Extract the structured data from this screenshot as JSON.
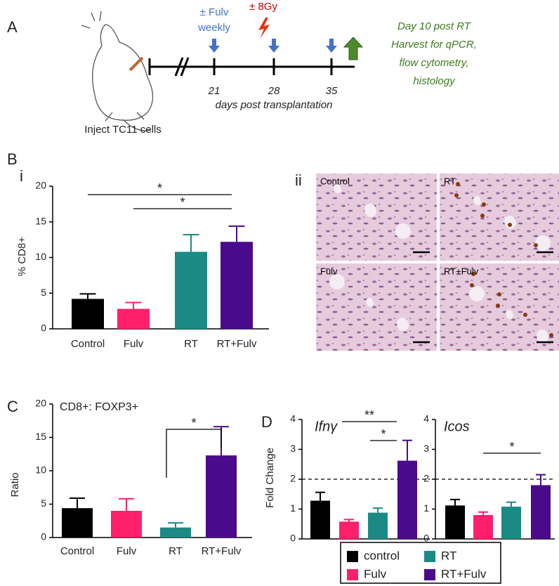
{
  "panel_labels": [
    "A",
    "B",
    "i",
    "ii",
    "C",
    "D"
  ],
  "timeline": {
    "fulv": [
      "± Fulv",
      "weekly"
    ],
    "rt": "± 8Gy",
    "ticks": [
      21,
      28,
      35
    ],
    "axis_label": "days post transplantation",
    "harvest": [
      "Day 10 post RT",
      "Harvest for qPCR,",
      "flow cytometry,",
      "histology"
    ],
    "caption": "Inject TC11 cells"
  },
  "micrographs": [
    "Control",
    "RT",
    "Fulv",
    "RT+Fulv"
  ],
  "legend": [
    {
      "name": "control",
      "color": "#000000"
    },
    {
      "name": "RT",
      "color": "#1b8a85"
    },
    {
      "name": "Fulv",
      "color": "#ff1f6b"
    },
    {
      "name": "RT+Fulv",
      "color": "#4a0a8c"
    }
  ],
  "chart_data": [
    {
      "type": "bar",
      "ylabel": "% CD8+",
      "categories": [
        "Control",
        "Fulv",
        "RT",
        "RT+Fulv"
      ],
      "values": [
        4.2,
        2.8,
        10.8,
        12.2
      ],
      "errors": [
        0.7,
        0.9,
        2.4,
        2.2
      ],
      "colors": [
        "#000000",
        "#ff1f6b",
        "#1b8a85",
        "#4a0a8c"
      ],
      "ylim": [
        0,
        20
      ],
      "yticks": [
        0,
        5,
        10,
        15,
        20
      ],
      "annotations": [
        "*",
        "*"
      ]
    },
    {
      "type": "bar",
      "title": "CD8+: FOXP3+",
      "ylabel": "Ratio",
      "categories": [
        "Control",
        "Fulv",
        "RT",
        "RT+Fulv"
      ],
      "values": [
        4.4,
        4.0,
        1.5,
        12.3
      ],
      "errors": [
        1.5,
        1.8,
        0.7,
        4.3
      ],
      "colors": [
        "#000000",
        "#ff1f6b",
        "#1b8a85",
        "#4a0a8c"
      ],
      "ylim": [
        0,
        20
      ],
      "yticks": [
        0,
        5,
        10,
        15,
        20
      ],
      "annotations": [
        "*"
      ]
    },
    {
      "type": "bar",
      "title": "Ifnγ",
      "ylabel": "Fold Change",
      "values": [
        1.28,
        0.58,
        0.88,
        2.62
      ],
      "errors": [
        0.28,
        0.07,
        0.15,
        0.68
      ],
      "colors": [
        "#000000",
        "#ff1f6b",
        "#1b8a85",
        "#4a0a8c"
      ],
      "ylim": [
        0,
        4
      ],
      "yticks": [
        0,
        1,
        2,
        3,
        4
      ],
      "reference_line": 2,
      "annotations": [
        "**",
        "*"
      ]
    },
    {
      "type": "bar",
      "title": "Icos",
      "values": [
        1.12,
        0.8,
        1.08,
        1.8
      ],
      "errors": [
        0.2,
        0.1,
        0.15,
        0.35
      ],
      "colors": [
        "#000000",
        "#ff1f6b",
        "#1b8a85",
        "#4a0a8c"
      ],
      "ylim": [
        0,
        4
      ],
      "yticks": [
        0,
        1,
        2,
        3,
        4
      ],
      "reference_line": 2,
      "annotations": [
        "*"
      ]
    }
  ]
}
